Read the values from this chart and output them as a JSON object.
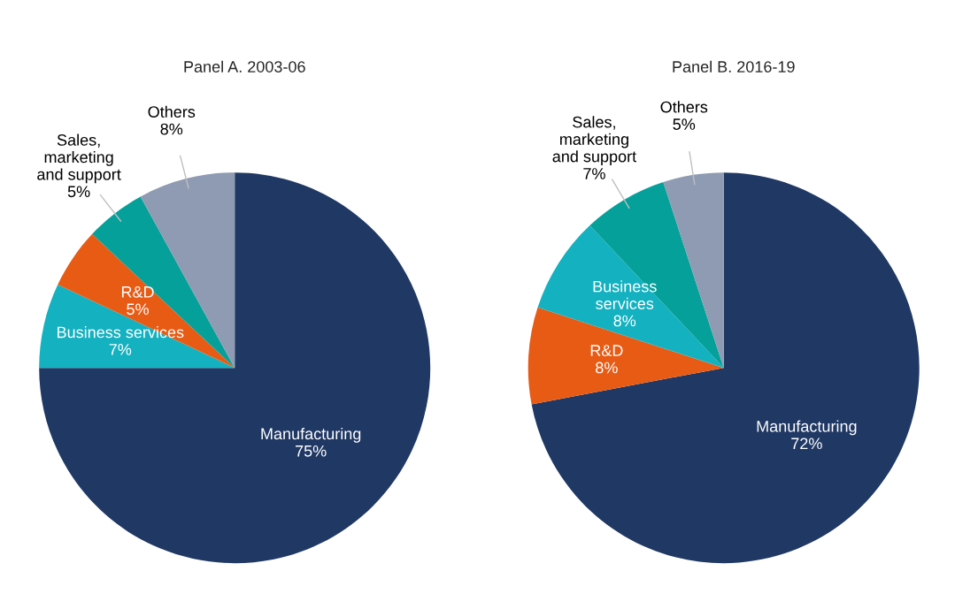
{
  "chart_data": [
    {
      "type": "pie",
      "title": "Panel A. 2003-06",
      "categories": [
        "Manufacturing",
        "Business services",
        "R&D",
        "Sales,\nmarketing\nand support",
        "Others"
      ],
      "values": [
        75,
        7,
        5,
        5,
        8
      ],
      "value_labels": [
        "75%",
        "7%",
        "5%",
        "5%",
        "8%"
      ],
      "colors": [
        "#203864",
        "#14b1c0",
        "#e85b14",
        "#05a09a",
        "#8f9bb2"
      ]
    },
    {
      "type": "pie",
      "title": "Panel B. 2016-19",
      "categories": [
        "Manufacturing",
        "R&D",
        "Business\nservices",
        "Sales,\nmarketing\nand support",
        "Others"
      ],
      "values": [
        72,
        8,
        8,
        7,
        5
      ],
      "value_labels": [
        "72%",
        "8%",
        "8%",
        "7%",
        "5%"
      ],
      "colors": [
        "#203864",
        "#e85b14",
        "#14b1c0",
        "#05a09a",
        "#8f9bb2"
      ]
    }
  ]
}
